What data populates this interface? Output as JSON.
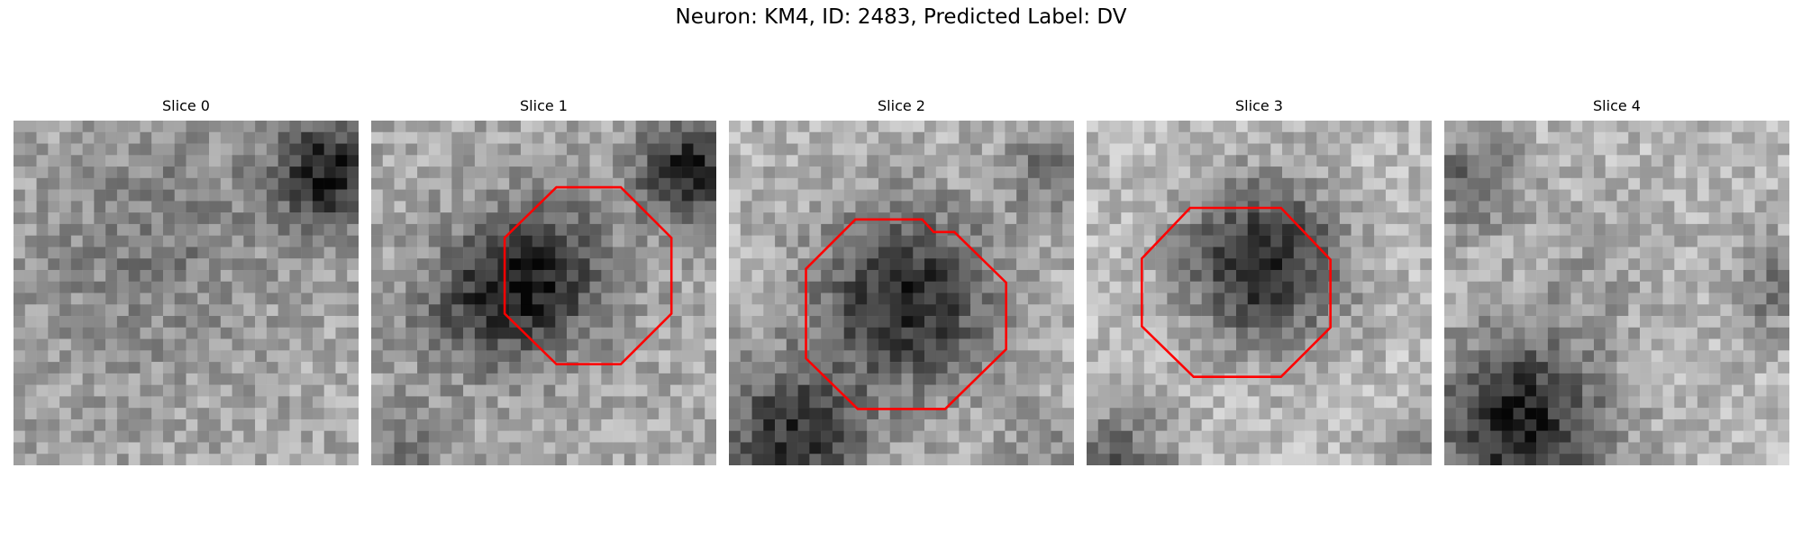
{
  "figure": {
    "title": "Neuron: KM4, ID: 2483, Predicted Label: DV"
  },
  "slices": [
    {
      "title": "Slice 0",
      "has_outline": false
    },
    {
      "title": "Slice 1",
      "has_outline": true
    },
    {
      "title": "Slice 2",
      "has_outline": true
    },
    {
      "title": "Slice 3",
      "has_outline": true
    },
    {
      "title": "Slice 4",
      "has_outline": false
    }
  ],
  "colors": {
    "outline": "#ff0000",
    "background": "#ffffff"
  }
}
